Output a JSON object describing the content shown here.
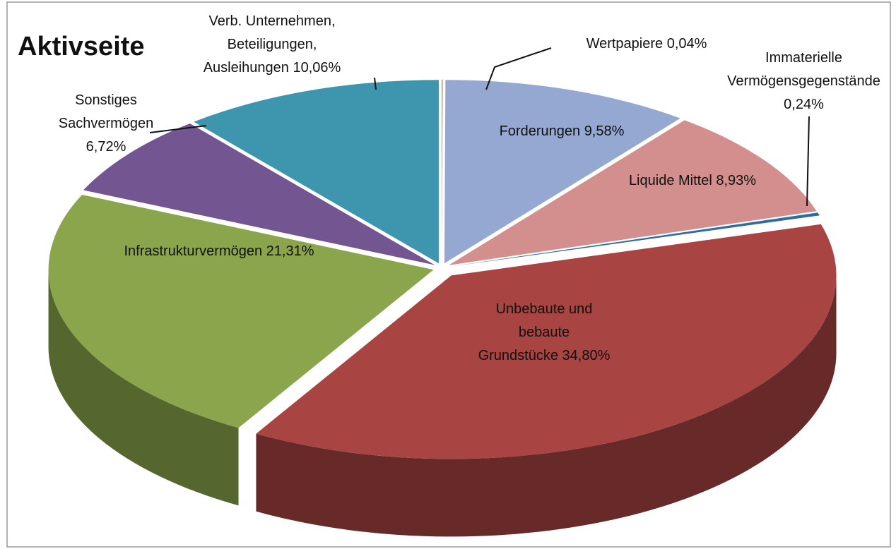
{
  "chart_data": {
    "type": "pie",
    "title": "Aktivseite",
    "categories": [
      "Wertpapiere",
      "Forderungen",
      "Liquide Mittel",
      "Immaterielle Vermögensgegenstände",
      "Unbebaute und bebaute Grundstücke",
      "Infrastrukturvermögen",
      "Sonstiges Sachvermögen",
      "Verb. Unternehmen, Beteiligungen, Ausleihungen"
    ],
    "values": [
      0.04,
      9.58,
      8.93,
      0.24,
      34.8,
      21.31,
      6.72,
      10.06
    ],
    "value_labels": [
      "0,04%",
      "9,58%",
      "8,93%",
      "0,24%",
      "34,80%",
      "21,31%",
      "6,72%",
      "10,06%"
    ],
    "colors": [
      "#d98532",
      "#95a8d2",
      "#d38f8d",
      "#2f6da0",
      "#a84442",
      "#8aa54b",
      "#735591",
      "#3e95ae"
    ]
  }
}
